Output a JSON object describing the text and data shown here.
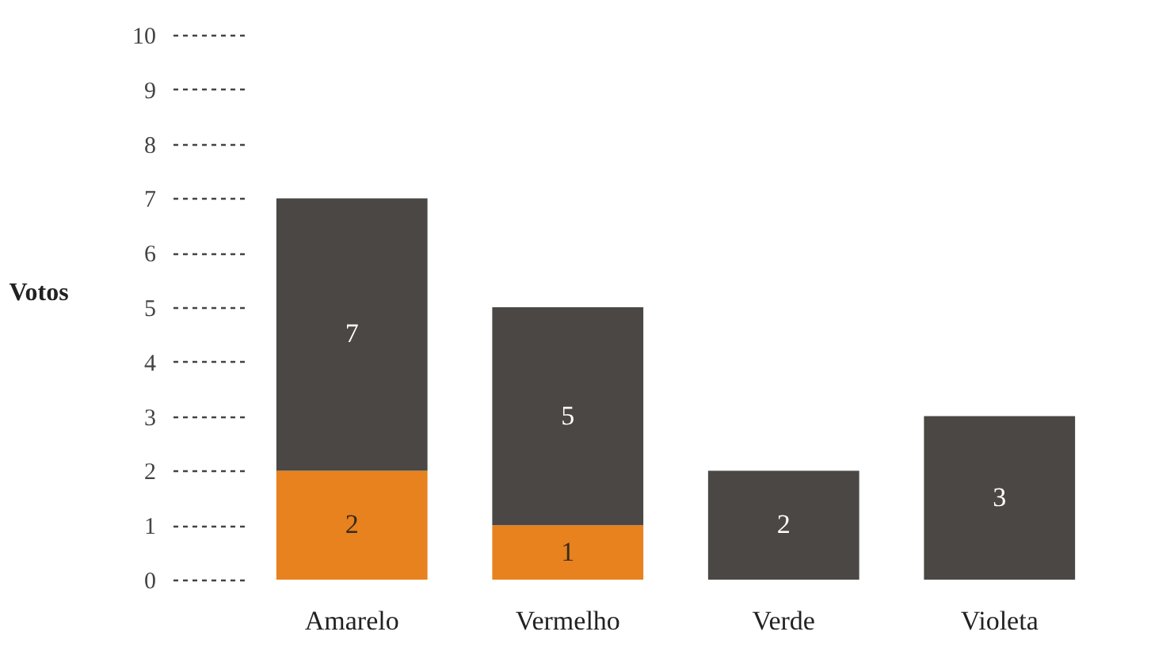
{
  "chart_data": {
    "type": "bar",
    "ylabel": "Votos",
    "categories": [
      "Amarelo",
      "Vermelho",
      "Verde",
      "Violeta"
    ],
    "stacked": true,
    "ylim": [
      0,
      10
    ],
    "yticks": [
      0,
      1,
      2,
      3,
      4,
      5,
      6,
      7,
      8,
      9,
      10
    ],
    "grid": false,
    "series": [
      {
        "color": "#e8821e",
        "values": [
          2,
          1,
          null,
          null
        ],
        "value_labels": [
          "2",
          "1",
          null,
          null
        ]
      },
      {
        "color": "#4a4745",
        "values": [
          5,
          4,
          2,
          3
        ]
      }
    ],
    "totals": [
      "7",
      "5",
      "2",
      "3"
    ]
  }
}
